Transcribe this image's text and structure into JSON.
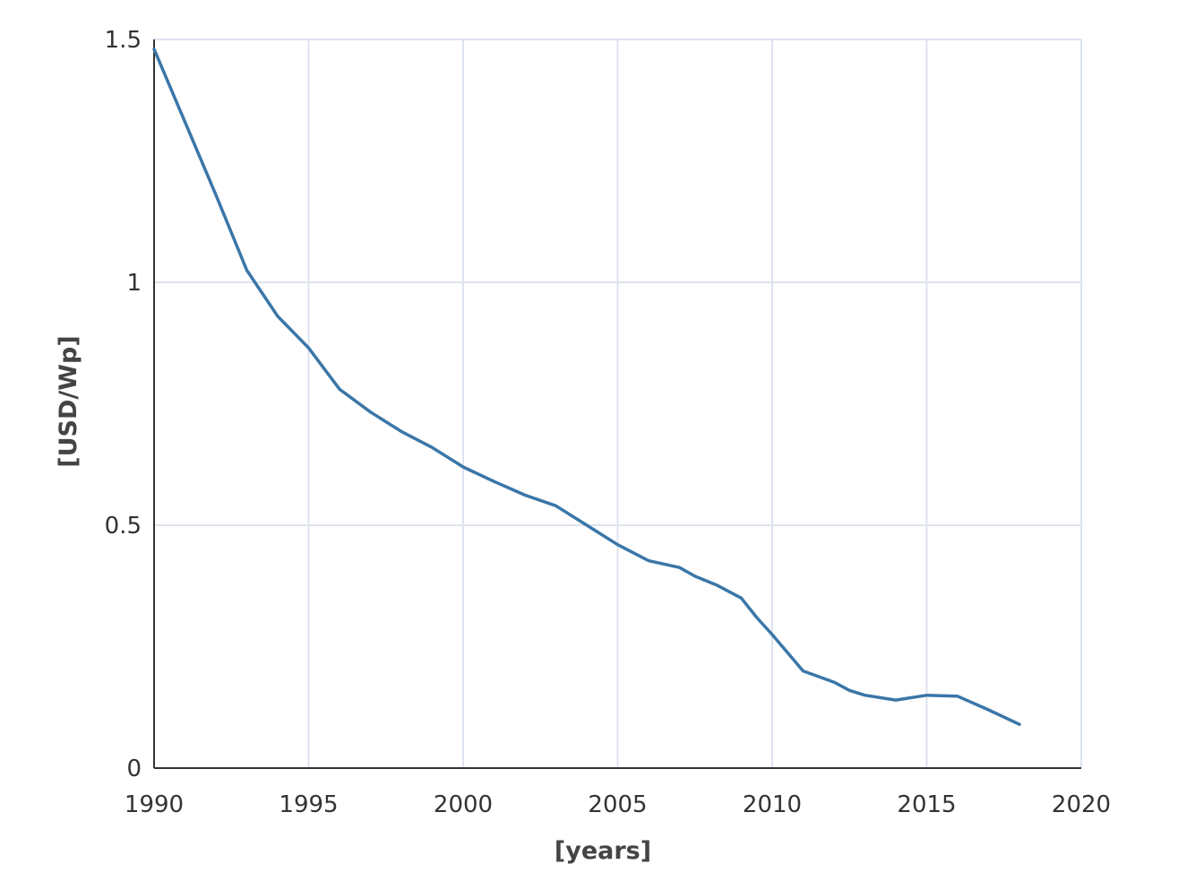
{
  "chart_data": {
    "type": "line",
    "title": "",
    "xlabel": "[years]",
    "ylabel": "[USD/Wp]",
    "xlim": [
      1990,
      2020
    ],
    "ylim": [
      0,
      1.5
    ],
    "x_ticks": [
      "1990",
      "1995",
      "2000",
      "2005",
      "2010",
      "2015",
      "2020"
    ],
    "y_ticks": [
      "0",
      "0.5",
      "1",
      "1.5"
    ],
    "grid": true,
    "legend": "none",
    "line_color": "#3a76a8",
    "series": [
      {
        "x": [
          1990,
          1991,
          1992,
          1993,
          1994,
          1995,
          1996,
          1997,
          1998,
          1999,
          2000,
          2001,
          2002,
          2003,
          2004,
          2005,
          2006,
          2007,
          2007.5,
          2008.2,
          2009,
          2009.5,
          2010,
          2011,
          2012,
          2012.5,
          2013,
          2014,
          2015,
          2016,
          2017,
          2018
        ],
        "y": [
          1.48,
          1.33,
          1.18,
          1.025,
          0.93,
          0.865,
          0.78,
          0.733,
          0.693,
          0.66,
          0.62,
          0.59,
          0.562,
          0.54,
          0.5,
          0.46,
          0.427,
          0.413,
          0.395,
          0.377,
          0.35,
          0.31,
          0.275,
          0.2,
          0.177,
          0.16,
          0.15,
          0.14,
          0.15,
          0.148,
          0.12,
          0.09
        ]
      }
    ]
  }
}
